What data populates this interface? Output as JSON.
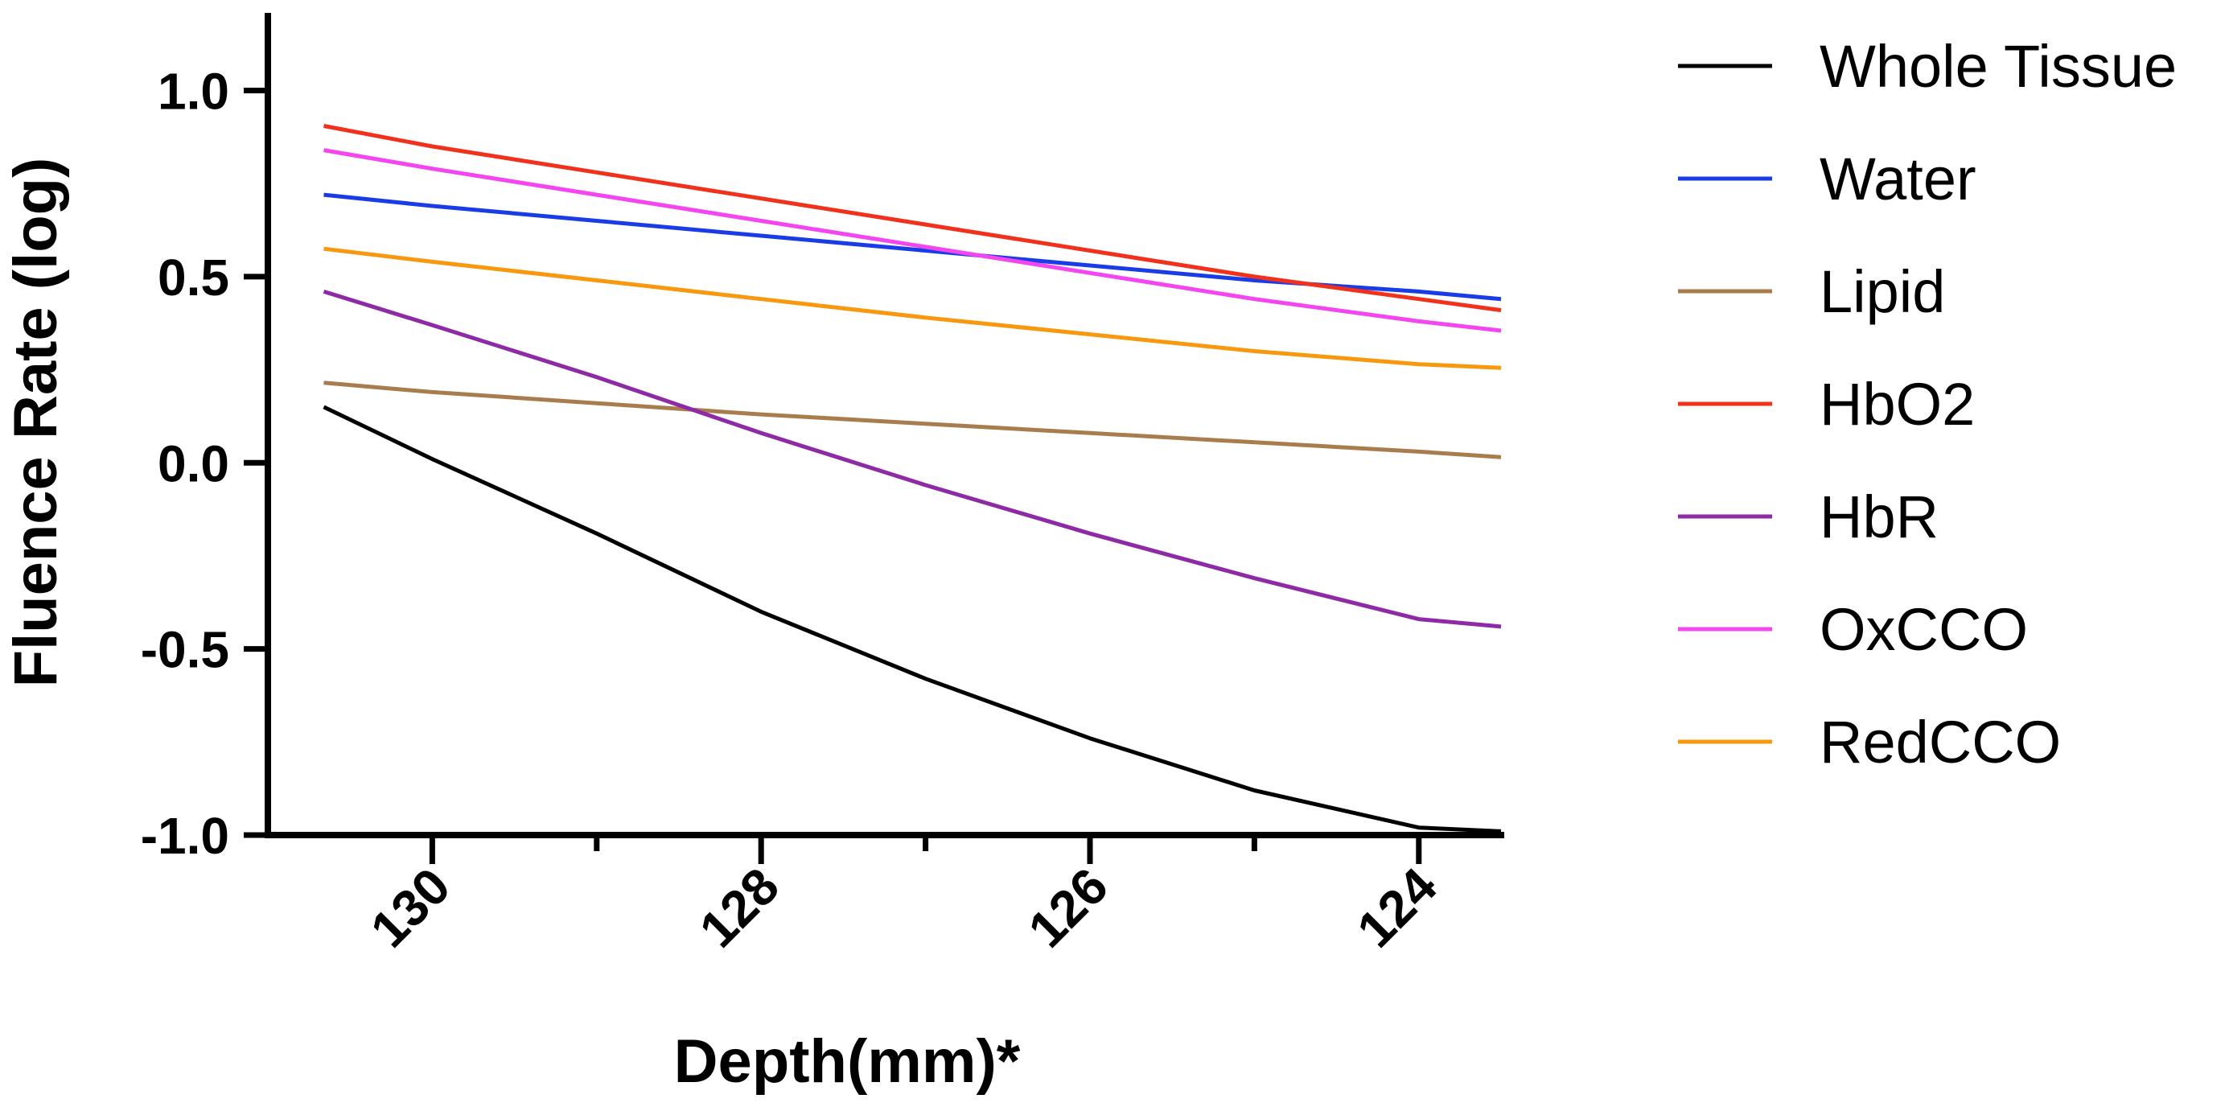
{
  "chart_data": {
    "type": "line",
    "title": "",
    "xlabel": "Depth(mm)*",
    "ylabel": "Fluence Rate (log)",
    "xlim": [
      131,
      123.5
    ],
    "ylim": [
      -1.0,
      1.2
    ],
    "x_reversed": true,
    "x_ticks": [
      130,
      128,
      126,
      124
    ],
    "x_tick_labels": [
      "130",
      "128",
      "126",
      "124"
    ],
    "x_minor_ticks": [
      129,
      127,
      125
    ],
    "y_ticks": [
      1.0,
      0.5,
      0.0,
      -0.5,
      -1.0
    ],
    "y_tick_labels": [
      "1.0",
      "0.5",
      "0.0",
      "-0.5",
      "-1.0"
    ],
    "grid": false,
    "legend_position": "right",
    "x": [
      130.66,
      130.0,
      129.0,
      128.0,
      127.0,
      126.0,
      125.0,
      124.0,
      123.5
    ],
    "series": [
      {
        "name": "Whole Tissue",
        "color": "#000000",
        "values": [
          0.15,
          0.01,
          -0.19,
          -0.4,
          -0.58,
          -0.74,
          -0.88,
          -0.98,
          -0.99
        ]
      },
      {
        "name": "Water",
        "color": "#1a3ce6",
        "values": [
          0.72,
          0.69,
          0.65,
          0.61,
          0.57,
          0.53,
          0.49,
          0.46,
          0.44
        ]
      },
      {
        "name": "Lipid",
        "color": "#a97c4e",
        "values": [
          0.215,
          0.19,
          0.16,
          0.13,
          0.105,
          0.08,
          0.055,
          0.03,
          0.015
        ]
      },
      {
        "name": "HbO2",
        "color": "#f2311d",
        "values": [
          0.905,
          0.85,
          0.78,
          0.71,
          0.64,
          0.57,
          0.5,
          0.44,
          0.41
        ]
      },
      {
        "name": "HbR",
        "color": "#8e2aa6",
        "values": [
          0.46,
          0.37,
          0.23,
          0.08,
          -0.06,
          -0.19,
          -0.31,
          -0.42,
          -0.44
        ]
      },
      {
        "name": "OxCCO",
        "color": "#f346f0",
        "values": [
          0.84,
          0.79,
          0.72,
          0.65,
          0.58,
          0.51,
          0.44,
          0.38,
          0.355
        ]
      },
      {
        "name": "RedCCO",
        "color": "#f7980f",
        "values": [
          0.575,
          0.54,
          0.49,
          0.44,
          0.39,
          0.345,
          0.3,
          0.265,
          0.255
        ]
      }
    ]
  }
}
